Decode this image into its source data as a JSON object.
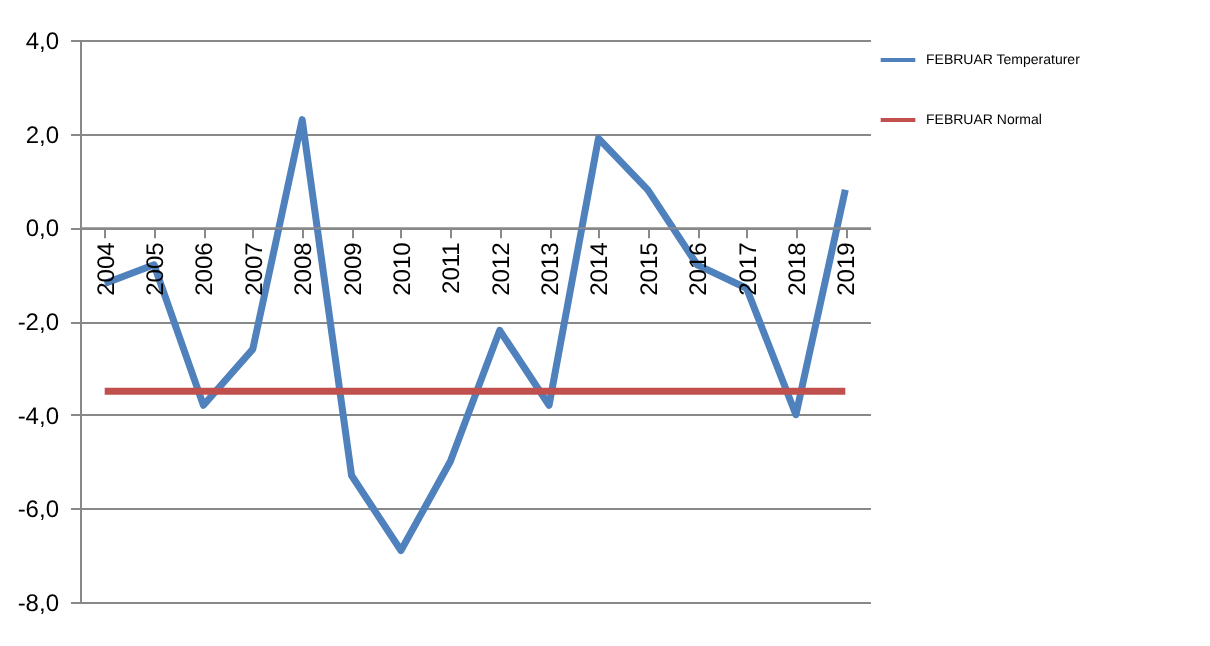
{
  "chart_data": {
    "type": "line",
    "categories": [
      "2004",
      "2005",
      "2006",
      "2007",
      "2008",
      "2009",
      "2010",
      "2011",
      "2012",
      "2013",
      "2014",
      "2015",
      "2016",
      "2017",
      "2018",
      "2019"
    ],
    "series": [
      {
        "name": "FEBRUAR Temperaturer",
        "color": "#4f81bd",
        "values": [
          -1.2,
          -0.8,
          -3.8,
          -2.6,
          2.3,
          -5.3,
          -6.9,
          -5.0,
          -2.2,
          -3.8,
          1.9,
          0.8,
          -0.8,
          -1.3,
          -4.0,
          0.8
        ]
      },
      {
        "name": "FEBRUAR Normal",
        "color": "#c0504d",
        "values": [
          -3.5,
          -3.5,
          -3.5,
          -3.5,
          -3.5,
          -3.5,
          -3.5,
          -3.5,
          -3.5,
          -3.5,
          -3.5,
          -3.5,
          -3.5,
          -3.5,
          -3.5,
          -3.5
        ]
      }
    ],
    "ylim": [
      -8,
      4
    ],
    "yticks": [
      {
        "value": -8,
        "label": "-8,0"
      },
      {
        "value": -6,
        "label": "-6,0"
      },
      {
        "value": -4,
        "label": "-4,0"
      },
      {
        "value": -2,
        "label": "-2,0"
      },
      {
        "value": 0,
        "label": "0,0"
      },
      {
        "value": 2,
        "label": "2,0"
      },
      {
        "value": 4,
        "label": "4,0"
      }
    ],
    "grid": "y",
    "legend": "right",
    "marker": "none",
    "line_style": "solid"
  }
}
